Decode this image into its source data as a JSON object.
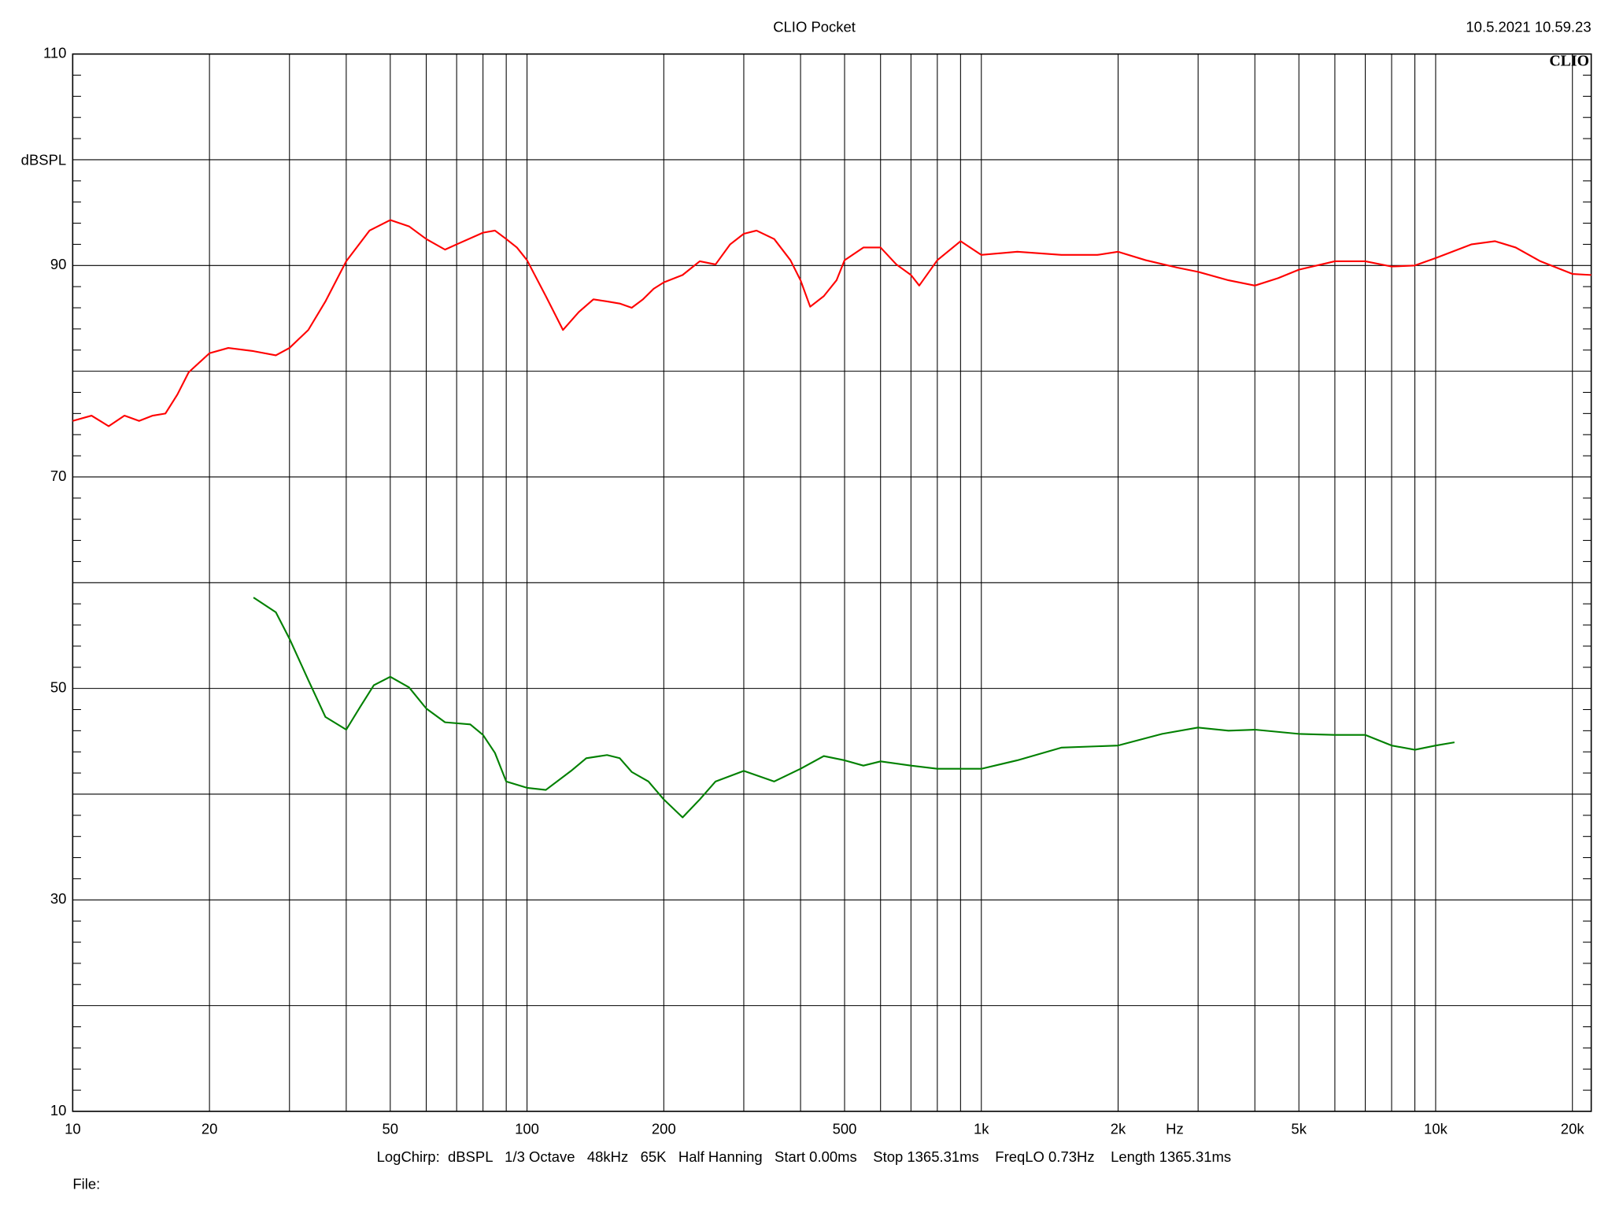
{
  "chart_data": {
    "type": "line",
    "title": "CLIO Pocket",
    "timestamp": "10.5.2021 10.59.23",
    "logo": "CLIO",
    "y_label": "dBSPL",
    "x_label": "Hz",
    "settings": "LogChirp:  dBSPL   1/3 Octave   48kHz   65K   Half Hanning   Start 0.00ms    Stop 1365.31ms    FreqLO 0.73Hz    Length 1365.31ms",
    "file_label": "File:",
    "log_x": true,
    "grid": true,
    "xlim": [
      10,
      22000
    ],
    "xticks": [
      10,
      20,
      50,
      100,
      200,
      500,
      {
        "value": 1000,
        "label": "1k"
      },
      {
        "value": 2000,
        "label": "2k"
      },
      {
        "value": 5000,
        "label": "5k"
      },
      {
        "value": 10000,
        "label": "10k"
      },
      {
        "value": 20000,
        "label": "20k"
      }
    ],
    "xgrid": [
      30,
      40,
      60,
      70,
      80,
      90,
      300,
      400,
      600,
      700,
      800,
      900,
      3000,
      4000,
      6000,
      7000,
      8000,
      9000
    ],
    "ylim": [
      10,
      110
    ],
    "yticks": [
      10,
      30,
      50,
      70,
      90,
      110
    ],
    "ygrid": [
      20,
      40,
      60,
      80,
      100
    ],
    "y_minor_ticks": [
      12,
      14,
      16,
      18,
      22,
      24,
      26,
      28,
      32,
      34,
      36,
      38,
      42,
      44,
      46,
      48,
      52,
      54,
      56,
      58,
      62,
      64,
      66,
      68,
      72,
      74,
      76,
      78,
      82,
      84,
      86,
      88,
      92,
      94,
      96,
      98,
      102,
      104,
      106,
      108
    ],
    "series": [
      {
        "color": "#ff0000",
        "x": [
          10,
          11,
          12,
          13,
          14,
          15,
          16,
          17,
          18,
          20,
          22,
          25,
          28,
          30,
          33,
          36,
          40,
          45,
          50,
          55,
          60,
          66,
          70,
          80,
          85,
          90,
          95,
          100,
          110,
          120,
          130,
          140,
          150,
          160,
          170,
          180,
          190,
          200,
          220,
          240,
          260,
          280,
          300,
          320,
          350,
          380,
          400,
          420,
          450,
          480,
          500,
          550,
          600,
          650,
          700,
          730,
          800,
          900,
          1000,
          1200,
          1500,
          1800,
          2000,
          2300,
          2700,
          3000,
          3500,
          4000,
          4500,
          5000,
          6000,
          7000,
          8000,
          9000,
          10000,
          12000,
          13500,
          15000,
          17000,
          20000,
          22000
        ],
        "values": [
          75.3,
          75.8,
          74.8,
          75.8,
          75.3,
          75.8,
          76.0,
          77.8,
          79.9,
          81.7,
          82.2,
          81.9,
          81.5,
          82.2,
          83.9,
          86.6,
          90.4,
          93.3,
          94.3,
          93.7,
          92.5,
          91.5,
          92.0,
          93.1,
          93.3,
          92.5,
          91.7,
          90.5,
          87.1,
          83.9,
          85.6,
          86.8,
          86.6,
          86.4,
          86.0,
          86.8,
          87.8,
          88.4,
          89.1,
          90.4,
          90.1,
          92.0,
          93.0,
          93.3,
          92.5,
          90.5,
          88.6,
          86.1,
          87.1,
          88.6,
          90.5,
          91.7,
          91.7,
          90.1,
          89.1,
          88.1,
          90.5,
          92.3,
          91.0,
          91.3,
          91.0,
          91.0,
          91.3,
          90.5,
          89.8,
          89.4,
          88.6,
          88.1,
          88.8,
          89.6,
          90.4,
          90.4,
          89.9,
          90.0,
          90.7,
          92.0,
          92.3,
          91.7,
          90.4,
          89.2,
          89.1
        ]
      },
      {
        "color": "#008000",
        "x": [
          25,
          28,
          30,
          33,
          36,
          40,
          43,
          46,
          50,
          55,
          60,
          66,
          75,
          80,
          85,
          90,
          100,
          110,
          125,
          135,
          150,
          160,
          170,
          185,
          200,
          220,
          240,
          260,
          300,
          350,
          400,
          450,
          500,
          550,
          600,
          700,
          800,
          1000,
          1200,
          1500,
          2000,
          2500,
          3000,
          3500,
          4000,
          5000,
          6000,
          7000,
          8000,
          9000,
          10000,
          11000
        ],
        "values": [
          58.6,
          57.2,
          54.7,
          50.8,
          47.3,
          46.1,
          48.3,
          50.3,
          51.1,
          50.1,
          48.1,
          46.8,
          46.6,
          45.6,
          43.9,
          41.2,
          40.6,
          40.4,
          42.2,
          43.4,
          43.7,
          43.4,
          42.1,
          41.2,
          39.5,
          37.8,
          39.5,
          41.2,
          42.2,
          41.2,
          42.4,
          43.6,
          43.2,
          42.7,
          43.1,
          42.7,
          42.4,
          42.4,
          43.2,
          44.4,
          44.6,
          45.7,
          46.3,
          46.0,
          46.1,
          45.7,
          45.6,
          45.6,
          44.6,
          44.2,
          44.6,
          44.9
        ]
      }
    ]
  }
}
